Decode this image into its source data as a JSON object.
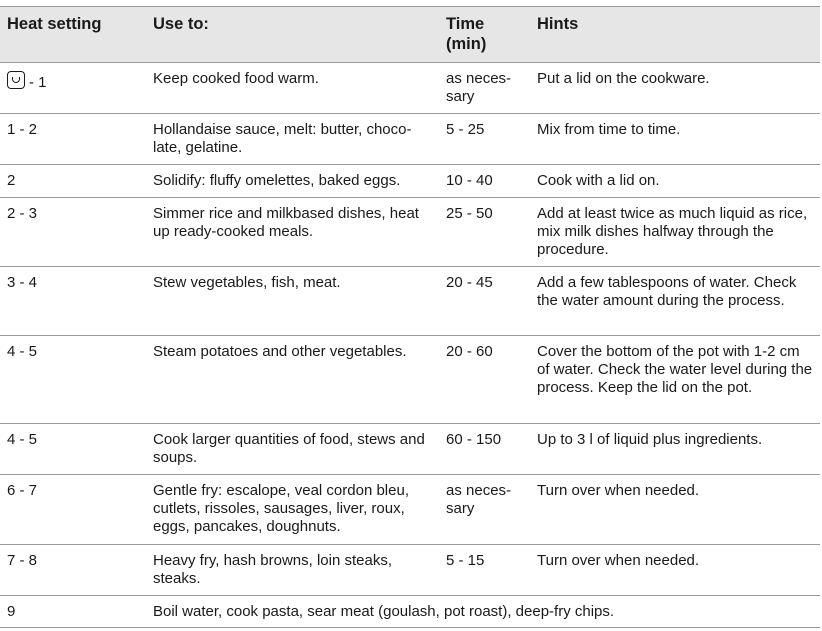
{
  "headers": {
    "heat_setting": "Heat setting",
    "use_to": "Use to:",
    "time": "Time (min)",
    "hints": "Hints"
  },
  "rows": [
    {
      "heat": "- 1",
      "heat_icon": "keep-warm-icon",
      "use": "Keep cooked food warm.",
      "time": "as neces-sary",
      "hint": "Put a lid on the cookware."
    },
    {
      "heat": "1 - 2",
      "use": "Hollandaise sauce, melt: butter, choco-late, gelatine.",
      "time": "5 - 25",
      "hint": "Mix from time to time."
    },
    {
      "heat": "2",
      "use": "Solidify: fluffy omelettes, baked eggs.",
      "time": "10 - 40",
      "hint": "Cook with a lid on."
    },
    {
      "heat": "2 - 3",
      "use": "Simmer rice and milkbased dishes, heat up ready-cooked meals.",
      "time": "25 - 50",
      "hint": "Add at least twice as much liquid as rice, mix milk dishes halfway through the procedure."
    },
    {
      "heat": "3 - 4",
      "use": "Stew vegetables, fish, meat.",
      "time": "20 - 45",
      "hint": "Add a few tablespoons of water. Check the water amount during the process."
    },
    {
      "heat": "4 - 5",
      "use": "Steam potatoes and other vegetables.",
      "time": "20 - 60",
      "hint": "Cover the bottom of the pot with 1-2 cm of water. Check the water level during the process. Keep the lid on the pot."
    },
    {
      "heat": "4 - 5",
      "use": "Cook larger quantities of food, stews and soups.",
      "time": "60 - 150",
      "hint": "Up to 3 l of liquid plus ingredients."
    },
    {
      "heat": "6 - 7",
      "use": "Gentle fry: escalope, veal cordon bleu, cutlets, rissoles, sausages, liver, roux, eggs, pancakes, doughnuts.",
      "time": "as neces-sary",
      "hint": "Turn over when needed."
    },
    {
      "heat": "7 - 8",
      "use": "Heavy fry, hash browns, loin steaks, steaks.",
      "time": "5 - 15",
      "hint": "Turn over when needed."
    },
    {
      "heat": "9",
      "use": "Boil water, cook pasta, sear meat (goulash, pot roast), deep-fry chips."
    }
  ]
}
